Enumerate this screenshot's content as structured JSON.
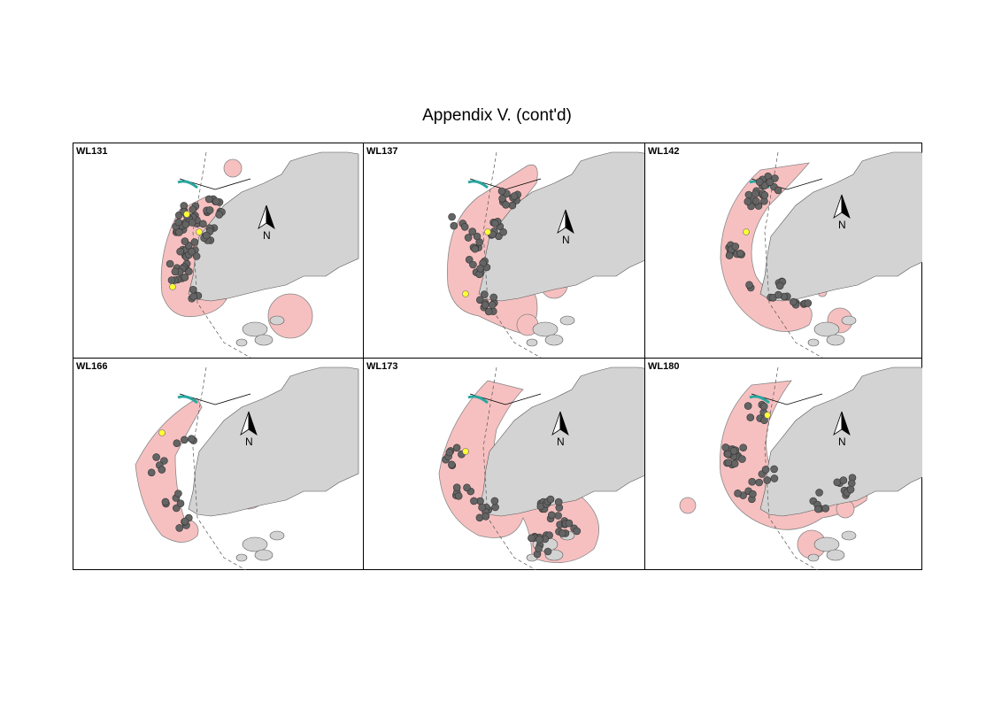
{
  "title": "Appendix V.  (cont'd)",
  "north_label": "N",
  "colors": {
    "land": "#d3d3d3",
    "home_range": "#f7c0c0",
    "home_range_edge": "#888888",
    "location_point": "#646464",
    "highlight_point": "#ffff33",
    "water_feature": "#2aa6a0"
  },
  "panels": [
    {
      "id": "WL131",
      "label": "WL131"
    },
    {
      "id": "WL137",
      "label": "WL137"
    },
    {
      "id": "WL142",
      "label": "WL142"
    },
    {
      "id": "WL166",
      "label": "WL166"
    },
    {
      "id": "WL173",
      "label": "WL173"
    },
    {
      "id": "WL180",
      "label": "WL180"
    }
  ]
}
